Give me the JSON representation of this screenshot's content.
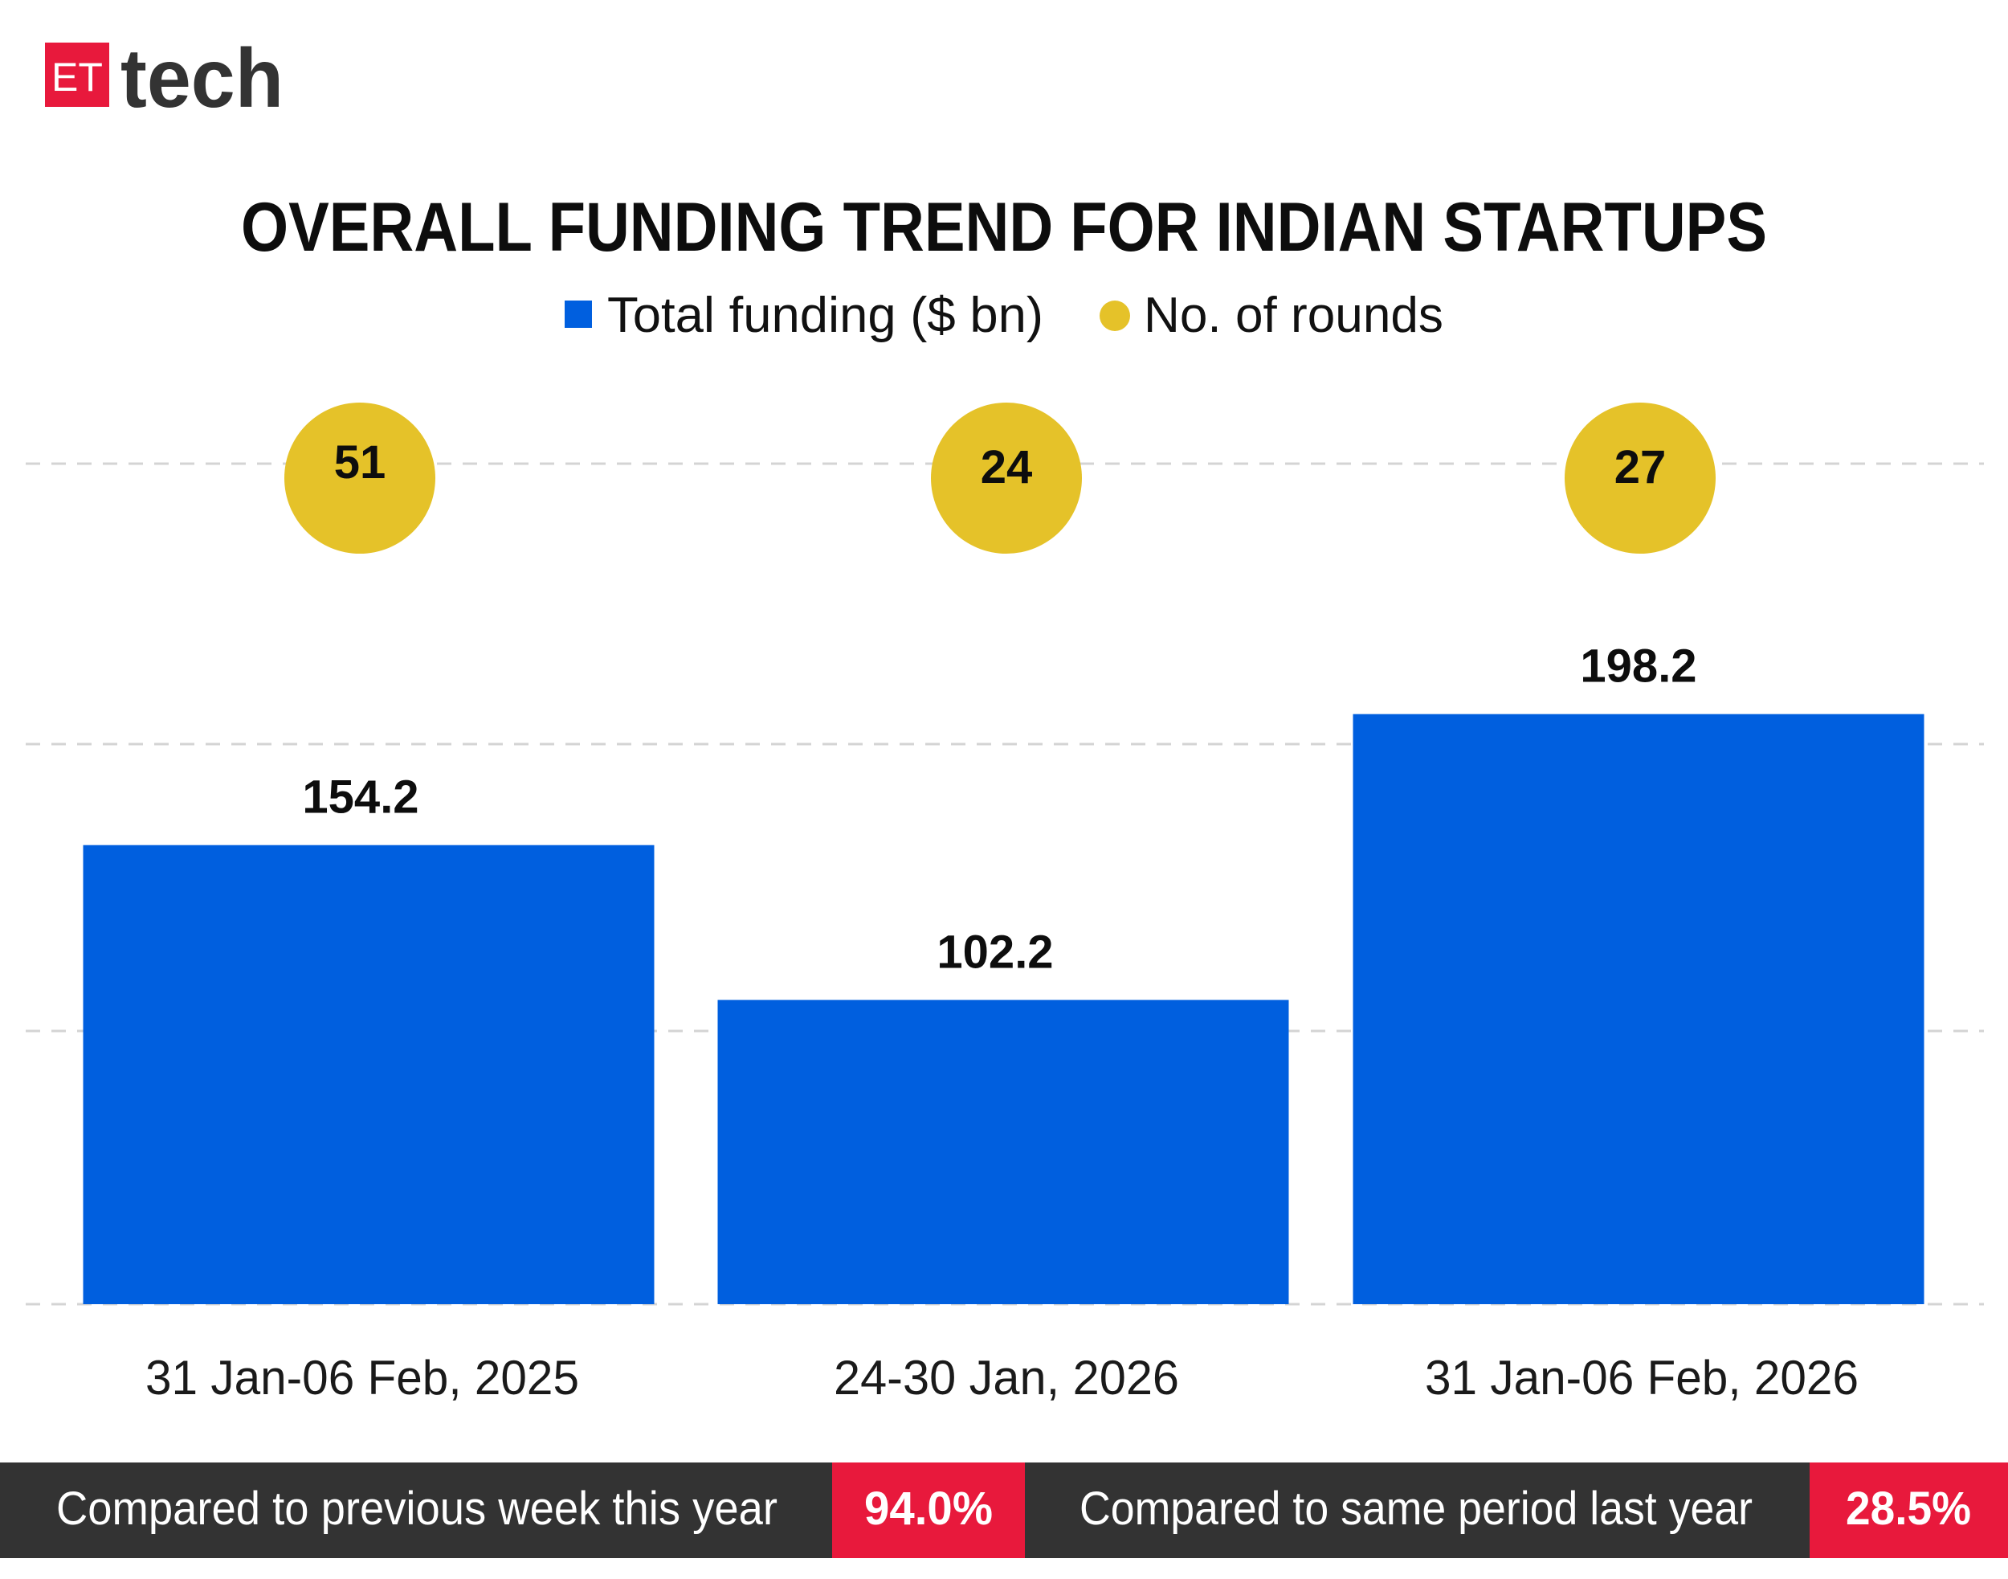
{
  "brand": {
    "logo_box": "ET",
    "logo_word": "tech",
    "red": "#e8193c",
    "dark": "#333333"
  },
  "chart_data": {
    "type": "bar",
    "title": "OVERALL FUNDING TREND FOR INDIAN STARTUPS",
    "legend": [
      {
        "label": "Total funding ($ bn)",
        "marker": "square",
        "color": "#005fdf"
      },
      {
        "label": "No. of rounds",
        "marker": "circle",
        "color": "#e5c229"
      }
    ],
    "legend_placement": "top-center",
    "categories": [
      "31 Jan-06 Feb, 2025",
      "24-30 Jan, 2026",
      "31 Jan-06 Feb, 2026"
    ],
    "series": [
      {
        "name": "Total funding ($ bn)",
        "values": [
          154.2,
          102.2,
          198.2
        ],
        "labels": [
          "154.2",
          "102.2",
          "198.2"
        ],
        "type": "bar",
        "color": "#005fdf"
      },
      {
        "name": "No. of rounds",
        "values": [
          51,
          24,
          27
        ],
        "labels": [
          "51",
          "24",
          "27"
        ],
        "type": "bubble",
        "color": "#e5c229"
      }
    ],
    "grid": true,
    "grid_style": "dashed"
  },
  "footer": {
    "items": [
      {
        "label": "Compared to previous week this year",
        "value": "94.0%"
      },
      {
        "label": "Compared to same period last year",
        "value": "28.5%"
      }
    ]
  }
}
